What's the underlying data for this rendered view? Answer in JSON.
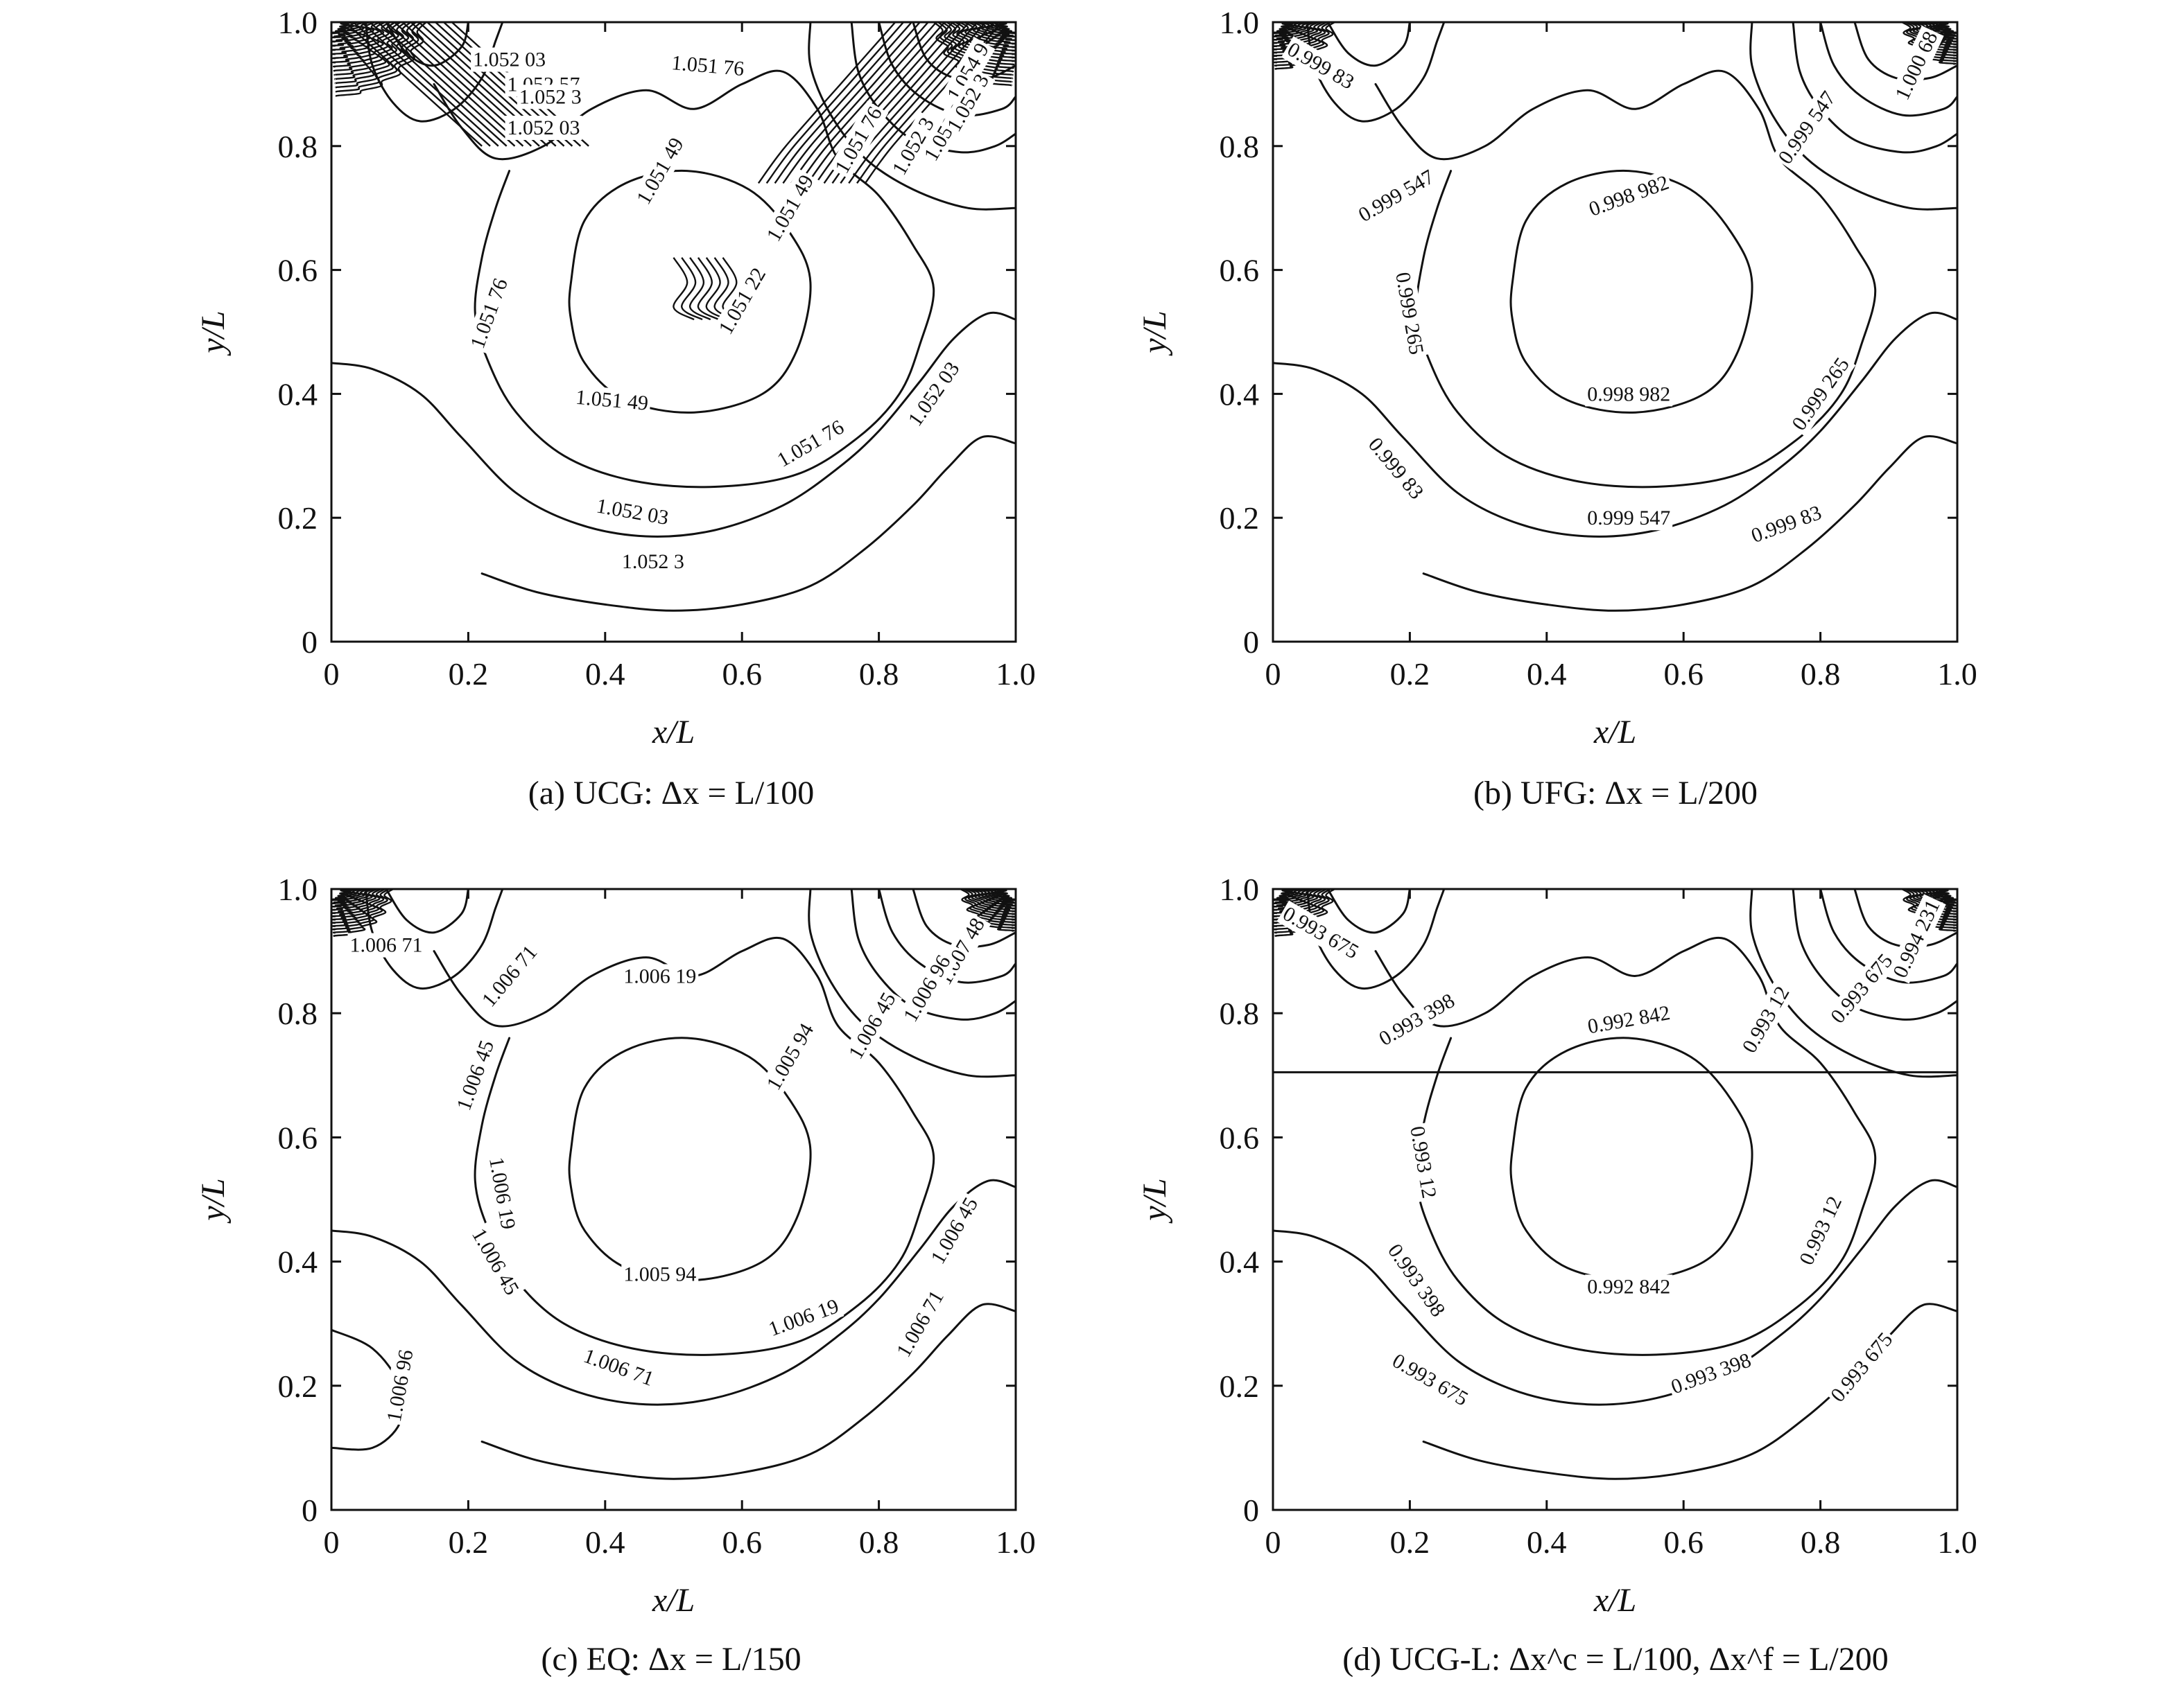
{
  "chart_data": [
    {
      "type": "contour",
      "caption": "(a) UCG: Δx = L/100",
      "xlabel": "x/L",
      "ylabel": "y/L",
      "xlim": [
        0,
        1.0
      ],
      "ylim": [
        0,
        1.0
      ],
      "xticks": [
        "0",
        "0.2",
        "0.4",
        "0.6",
        "0.8",
        "1.0"
      ],
      "yticks": [
        "0",
        "0.2",
        "0.4",
        "0.6",
        "0.8",
        "1.0"
      ],
      "contour_labels": [
        {
          "text": "1.052 3",
          "x": 0.47,
          "y": 0.13,
          "angle": 0
        },
        {
          "text": "1.052 03",
          "x": 0.44,
          "y": 0.21,
          "angle": 10
        },
        {
          "text": "1.051 76",
          "x": 0.7,
          "y": 0.32,
          "angle": -30
        },
        {
          "text": "1.052 03",
          "x": 0.88,
          "y": 0.4,
          "angle": -55
        },
        {
          "text": "1.051 49",
          "x": 0.41,
          "y": 0.39,
          "angle": 5
        },
        {
          "text": "1.051 76",
          "x": 0.23,
          "y": 0.53,
          "angle": -70
        },
        {
          "text": "1.051 22",
          "x": 0.6,
          "y": 0.55,
          "angle": -60
        },
        {
          "text": "1.051 49",
          "x": 0.48,
          "y": 0.76,
          "angle": -60
        },
        {
          "text": "1.051 49",
          "x": 0.67,
          "y": 0.7,
          "angle": -60
        },
        {
          "text": "1.051 76",
          "x": 0.55,
          "y": 0.93,
          "angle": 5
        },
        {
          "text": "1.051 76",
          "x": 0.77,
          "y": 0.81,
          "angle": -60
        },
        {
          "text": "1.052 03",
          "x": 0.26,
          "y": 0.94,
          "angle": 0
        },
        {
          "text": "1.052 57",
          "x": 0.31,
          "y": 0.9,
          "angle": 0
        },
        {
          "text": "1.052 03",
          "x": 0.31,
          "y": 0.83,
          "angle": 0
        },
        {
          "text": "1.052 3",
          "x": 0.32,
          "y": 0.88,
          "angle": 0
        },
        {
          "text": "1.052 84",
          "x": 0.9,
          "y": 0.83,
          "angle": -60
        },
        {
          "text": "1.052 3",
          "x": 0.85,
          "y": 0.8,
          "angle": -60
        },
        {
          "text": "1.054 9",
          "x": 0.93,
          "y": 0.92,
          "angle": -60
        },
        {
          "text": "1.052 3",
          "x": 0.93,
          "y": 0.87,
          "angle": -60
        }
      ]
    },
    {
      "type": "contour",
      "caption": "(b) UFG: Δx = L/200",
      "xlabel": "x/L",
      "ylabel": "y/L",
      "xlim": [
        0,
        1.0
      ],
      "ylim": [
        0,
        1.0
      ],
      "xticks": [
        "0",
        "0.2",
        "0.4",
        "0.6",
        "0.8",
        "1.0"
      ],
      "yticks": [
        "0",
        "0.2",
        "0.4",
        "0.6",
        "0.8",
        "1.0"
      ],
      "contour_labels": [
        {
          "text": "0.999 83",
          "x": 0.07,
          "y": 0.93,
          "angle": 30
        },
        {
          "text": "1.000 68",
          "x": 0.94,
          "y": 0.93,
          "angle": -65
        },
        {
          "text": "0.999 547",
          "x": 0.78,
          "y": 0.83,
          "angle": -55
        },
        {
          "text": "0.999 547",
          "x": 0.18,
          "y": 0.72,
          "angle": -30
        },
        {
          "text": "0.998 982",
          "x": 0.52,
          "y": 0.72,
          "angle": -20
        },
        {
          "text": "0.999 265",
          "x": 0.2,
          "y": 0.53,
          "angle": 80
        },
        {
          "text": "0.998 982",
          "x": 0.52,
          "y": 0.4,
          "angle": 0
        },
        {
          "text": "0.999 265",
          "x": 0.8,
          "y": 0.4,
          "angle": -55
        },
        {
          "text": "0.999 83",
          "x": 0.18,
          "y": 0.28,
          "angle": 50
        },
        {
          "text": "0.999 547",
          "x": 0.52,
          "y": 0.2,
          "angle": 0
        },
        {
          "text": "0.999 83",
          "x": 0.75,
          "y": 0.19,
          "angle": -20
        }
      ]
    },
    {
      "type": "contour",
      "caption": "(c) EQ: Δx = L/150",
      "xlabel": "x/L",
      "ylabel": "y/L",
      "xlim": [
        0,
        1.0
      ],
      "ylim": [
        0,
        1.0
      ],
      "xticks": [
        "0",
        "0.2",
        "0.4",
        "0.6",
        "0.8",
        "1.0"
      ],
      "yticks": [
        "0",
        "0.2",
        "0.4",
        "0.6",
        "0.8",
        "1.0"
      ],
      "contour_labels": [
        {
          "text": "1.006 71",
          "x": 0.08,
          "y": 0.91,
          "angle": 0
        },
        {
          "text": "1.006 71",
          "x": 0.26,
          "y": 0.86,
          "angle": -50
        },
        {
          "text": "1.006 19",
          "x": 0.48,
          "y": 0.86,
          "angle": 0
        },
        {
          "text": "1.007 48",
          "x": 0.92,
          "y": 0.9,
          "angle": -60
        },
        {
          "text": "1.006 96",
          "x": 0.87,
          "y": 0.84,
          "angle": -60
        },
        {
          "text": "1.006 45",
          "x": 0.79,
          "y": 0.78,
          "angle": -60
        },
        {
          "text": "1.006 45",
          "x": 0.21,
          "y": 0.7,
          "angle": -70
        },
        {
          "text": "1.005 94",
          "x": 0.67,
          "y": 0.73,
          "angle": -60
        },
        {
          "text": "1.006 19",
          "x": 0.25,
          "y": 0.51,
          "angle": 80
        },
        {
          "text": "1.005 94",
          "x": 0.48,
          "y": 0.38,
          "angle": 0
        },
        {
          "text": "1.006 45",
          "x": 0.91,
          "y": 0.45,
          "angle": -60
        },
        {
          "text": "1.006 45",
          "x": 0.24,
          "y": 0.4,
          "angle": 60
        },
        {
          "text": "1.006 19",
          "x": 0.69,
          "y": 0.31,
          "angle": -20
        },
        {
          "text": "1.006 71",
          "x": 0.86,
          "y": 0.3,
          "angle": -60
        },
        {
          "text": "1.006 71",
          "x": 0.42,
          "y": 0.23,
          "angle": 20
        },
        {
          "text": "1.006 96",
          "x": 0.1,
          "y": 0.2,
          "angle": -80
        }
      ]
    },
    {
      "type": "contour",
      "caption": "(d) UCG-L: Δx^c = L/100, Δx^f = L/200",
      "xlabel": "x/L",
      "ylabel": "y/L",
      "xlim": [
        0,
        1.0
      ],
      "ylim": [
        0,
        1.0
      ],
      "xticks": [
        "0",
        "0.2",
        "0.4",
        "0.6",
        "0.8",
        "1.0"
      ],
      "yticks": [
        "0",
        "0.2",
        "0.4",
        "0.6",
        "0.8",
        "1.0"
      ],
      "interface_y": 0.705,
      "contour_labels": [
        {
          "text": "0.993 675",
          "x": 0.07,
          "y": 0.93,
          "angle": 30
        },
        {
          "text": "0.994 231",
          "x": 0.94,
          "y": 0.92,
          "angle": -65
        },
        {
          "text": "0.993 675",
          "x": 0.86,
          "y": 0.84,
          "angle": -50
        },
        {
          "text": "0.993 398",
          "x": 0.21,
          "y": 0.79,
          "angle": -30
        },
        {
          "text": "0.992 842",
          "x": 0.52,
          "y": 0.79,
          "angle": -10
        },
        {
          "text": "0.993 12",
          "x": 0.72,
          "y": 0.79,
          "angle": -60
        },
        {
          "text": "0.993 12",
          "x": 0.22,
          "y": 0.56,
          "angle": 80
        },
        {
          "text": "0.992 842",
          "x": 0.52,
          "y": 0.36,
          "angle": 0
        },
        {
          "text": "0.993 12",
          "x": 0.8,
          "y": 0.45,
          "angle": -65
        },
        {
          "text": "0.993 398",
          "x": 0.21,
          "y": 0.37,
          "angle": 55
        },
        {
          "text": "0.993 675",
          "x": 0.23,
          "y": 0.21,
          "angle": 30
        },
        {
          "text": "0.993 398",
          "x": 0.64,
          "y": 0.22,
          "angle": -20
        },
        {
          "text": "0.993 675",
          "x": 0.86,
          "y": 0.23,
          "angle": -50
        }
      ]
    }
  ]
}
